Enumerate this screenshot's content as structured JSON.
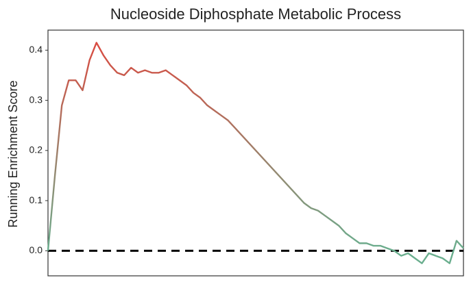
{
  "chart_data": {
    "type": "line",
    "title": "Nucleoside Diphosphate Metabolic Process",
    "y_label": "Running Enrichment Score",
    "values": [
      0.0,
      0.15,
      0.29,
      0.34,
      0.34,
      0.32,
      0.38,
      0.415,
      0.39,
      0.37,
      0.355,
      0.35,
      0.365,
      0.355,
      0.36,
      0.355,
      0.355,
      0.36,
      0.35,
      0.34,
      0.33,
      0.315,
      0.305,
      0.29,
      0.28,
      0.27,
      0.26,
      0.245,
      0.23,
      0.215,
      0.2,
      0.185,
      0.17,
      0.155,
      0.14,
      0.125,
      0.11,
      0.095,
      0.085,
      0.08,
      0.07,
      0.06,
      0.05,
      0.035,
      0.025,
      0.015,
      0.015,
      0.01,
      0.01,
      0.005,
      0.0,
      -0.01,
      -0.005,
      -0.015,
      -0.025,
      -0.005,
      -0.01,
      -0.015,
      -0.025,
      0.02,
      0.005
    ],
    "colors": [
      "#e0453c",
      "#6aae8e"
    ],
    "ylim": [
      -0.05,
      0.44
    ],
    "yticks": [
      {
        "value": 0,
        "label": "0.0"
      },
      0.1,
      0.2,
      0.3,
      0.4
    ],
    "hline": 0,
    "grid": false
  }
}
